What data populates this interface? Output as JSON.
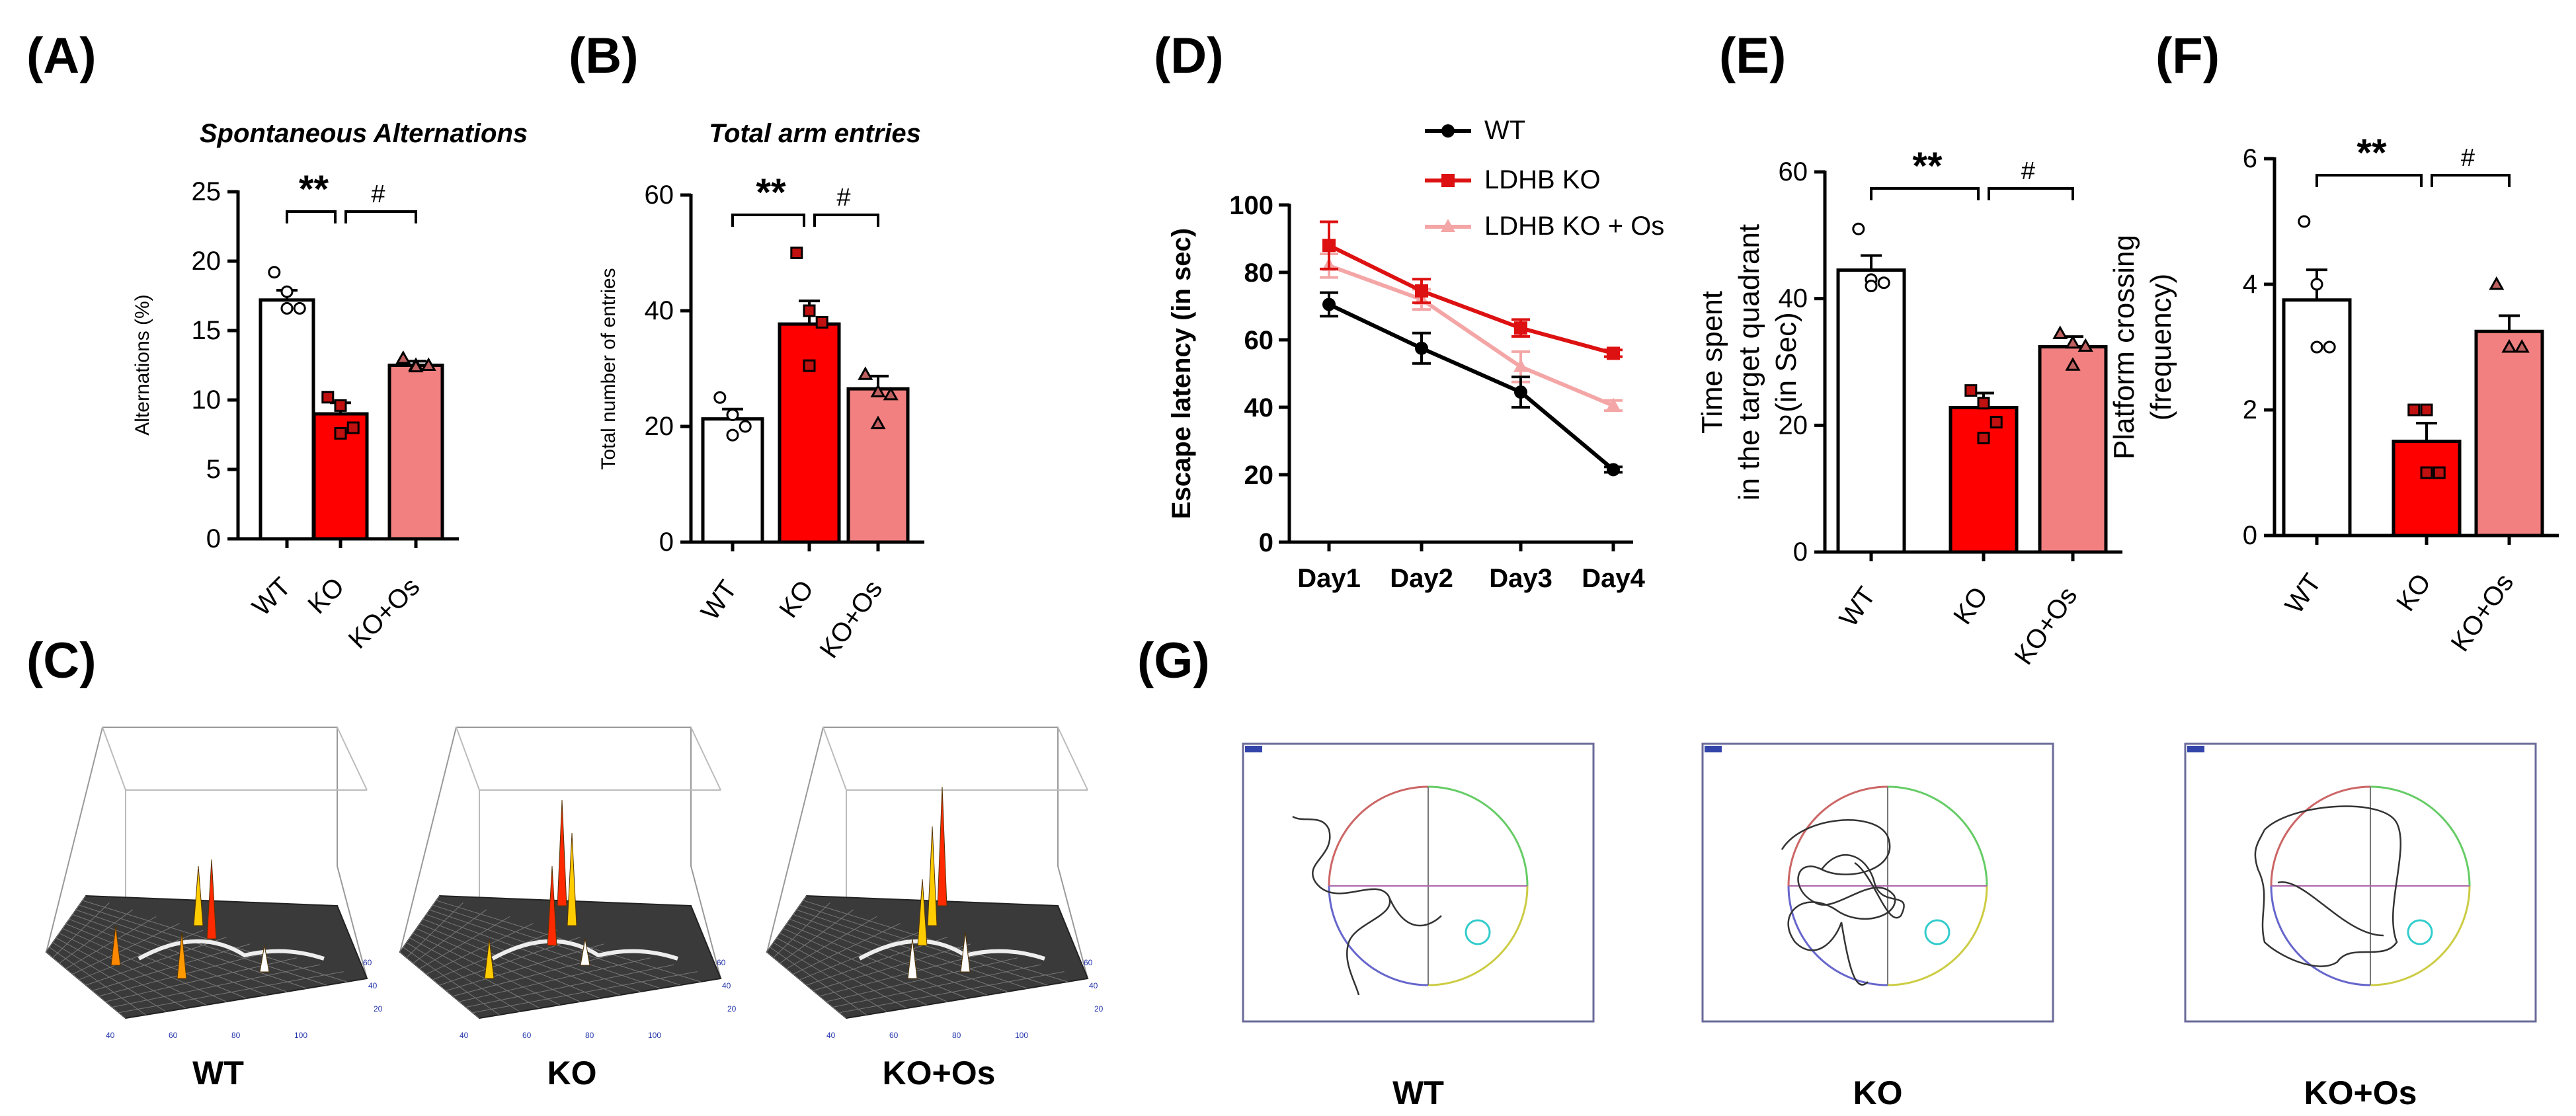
{
  "panel_labels": [
    "(A)",
    "(B)",
    "(C)",
    "(D)",
    "(E)",
    "(F)",
    "(G)"
  ],
  "colors": {
    "wt": "#ffffff",
    "ko": "#ff0000",
    "koos": "#f28080",
    "ko_line": "#dd1111",
    "koos_line": "#f4a6a6",
    "wt_line": "#000000"
  },
  "chart_data": [
    {
      "id": "A",
      "type": "bar",
      "title": "Spontaneous Alternations",
      "ylabel": "Alternations (%)",
      "ylim": [
        0,
        25
      ],
      "yticks": [
        0,
        5,
        10,
        15,
        20,
        25
      ],
      "categories": [
        "WT",
        "KO",
        "KO+Os"
      ],
      "values": [
        17.2,
        9.0,
        12.5
      ],
      "errors": [
        0.7,
        0.8,
        0.3
      ],
      "points": [
        [
          19.2,
          17.8,
          16.6,
          16.6
        ],
        [
          10.2,
          9.6,
          8.0,
          7.6
        ],
        [
          13.0,
          12.5,
          12.5,
          12.4
        ]
      ],
      "significance": [
        {
          "label": "**",
          "from": 0,
          "to": 1
        },
        {
          "label": "#",
          "from": 1,
          "to": 2
        }
      ]
    },
    {
      "id": "B",
      "type": "bar",
      "title": "Total arm entries",
      "ylabel": "Total number of entries",
      "ylim": [
        0,
        60
      ],
      "yticks": [
        0,
        20,
        40,
        60
      ],
      "categories": [
        "WT",
        "KO",
        "KO+Os"
      ],
      "values": [
        21.3,
        37.7,
        26.5
      ],
      "errors": [
        1.7,
        4.0,
        2.2
      ],
      "points": [
        [
          25,
          22,
          20,
          18.5
        ],
        [
          50,
          40,
          38,
          30.5
        ],
        [
          29,
          26,
          25.5,
          20.5
        ]
      ],
      "significance": [
        {
          "label": "**",
          "from": 0,
          "to": 1
        },
        {
          "label": "#",
          "from": 1,
          "to": 2
        }
      ]
    },
    {
      "id": "D",
      "type": "line",
      "title": "",
      "ylabel": "Escape latency  (in sec)",
      "ylim": [
        0,
        100
      ],
      "yticks": [
        0,
        20,
        40,
        60,
        80,
        100
      ],
      "categories": [
        "Day1",
        "Day2",
        "Day3",
        "Day4"
      ],
      "series": [
        {
          "name": "WT",
          "values": [
            70.5,
            57.5,
            44.5,
            21.5
          ],
          "errors": [
            3.5,
            4.5,
            4.5,
            0.8
          ]
        },
        {
          "name": "LDHB KO",
          "values": [
            88,
            74.5,
            63.5,
            56
          ],
          "errors": [
            7,
            3.5,
            2.5,
            1
          ]
        },
        {
          "name": "LDHB KO + Os",
          "values": [
            82,
            72,
            52,
            40.5
          ],
          "errors": [
            3.5,
            3,
            4.5,
            1.5
          ]
        }
      ]
    },
    {
      "id": "E",
      "type": "bar",
      "title": "",
      "ylabel_lines": [
        "Time spent",
        "in the target quadrant",
        "(in Sec)"
      ],
      "ylim": [
        0,
        60
      ],
      "yticks": [
        0,
        20,
        40,
        60
      ],
      "categories": [
        "WT",
        "KO",
        "KO+Os"
      ],
      "values": [
        44.5,
        22.8,
        32.4
      ],
      "errors": [
        2.3,
        2.3,
        1.6
      ],
      "points": [
        [
          51,
          43,
          42.5,
          42
        ],
        [
          25.5,
          23.5,
          20.5,
          18
        ],
        [
          34.5,
          33,
          32.5,
          29.5
        ]
      ],
      "significance": [
        {
          "label": "**",
          "from": 0,
          "to": 1
        },
        {
          "label": "#",
          "from": 1,
          "to": 2
        }
      ]
    },
    {
      "id": "F",
      "type": "bar",
      "title": "",
      "ylabel_lines": [
        "Platform crossing",
        "(frequency)"
      ],
      "ylim": [
        0,
        6
      ],
      "yticks": [
        0,
        2,
        4,
        6
      ],
      "categories": [
        "WT",
        "KO",
        "KO+Os"
      ],
      "values": [
        3.75,
        1.5,
        3.25
      ],
      "errors": [
        0.48,
        0.29,
        0.25
      ],
      "points": [
        [
          5,
          4,
          3,
          3
        ],
        [
          2,
          2,
          1,
          1
        ],
        [
          4,
          3,
          3,
          3
        ]
      ],
      "significance": [
        {
          "label": "**",
          "from": 0,
          "to": 1
        },
        {
          "label": "#",
          "from": 1,
          "to": 2
        }
      ]
    }
  ],
  "panel_c": {
    "captions": [
      "WT",
      "KO",
      "KO+Os"
    ],
    "axis_ticks_x": [
      "40",
      "60",
      "80",
      "100"
    ],
    "axis_ticks_y": [
      "20",
      "40",
      "60"
    ]
  },
  "panel_g": {
    "captions": [
      "WT",
      "KO",
      "KO+Os"
    ]
  }
}
